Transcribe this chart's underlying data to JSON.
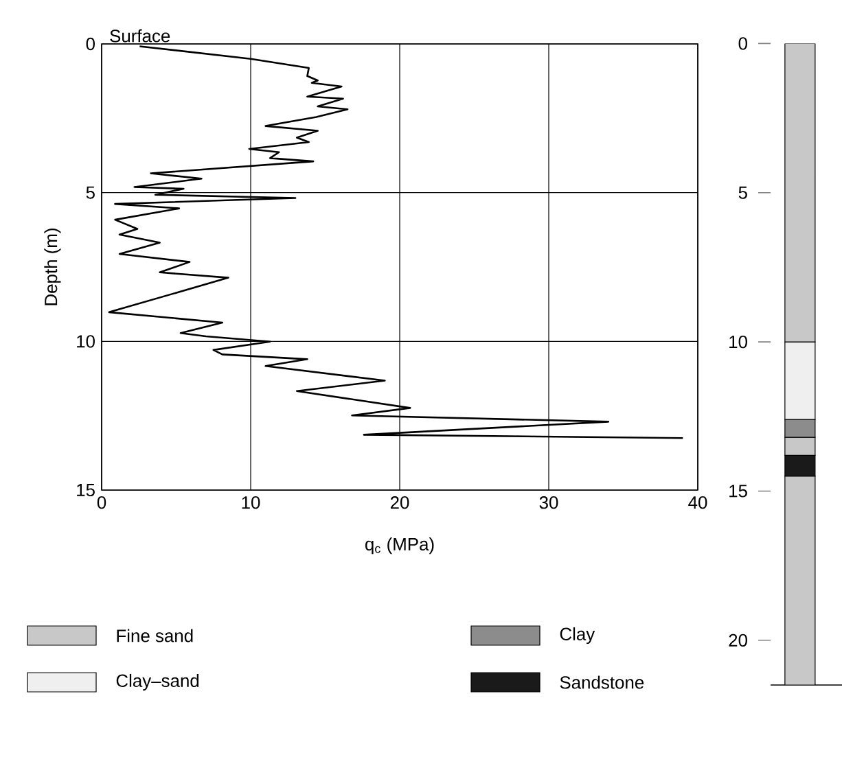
{
  "chart_data": [
    {
      "type": "line",
      "xlabel": "q$_{c}$ (MPa)",
      "ylabel": "Depth (m)",
      "annotations": [
        "Surface"
      ],
      "xlim": [
        0,
        40
      ],
      "ylim": [
        15,
        0
      ],
      "xticks": [
        0,
        10,
        20,
        30,
        40
      ],
      "yticks": [
        0,
        5,
        10,
        15
      ],
      "grid": true,
      "line_style": "solid",
      "series": [
        {
          "color": "#000000",
          "x": [
            2.55,
            10.0,
            13.9,
            13.8,
            14.5,
            14.1,
            16.1,
            13.8,
            16.2,
            14.5,
            16.5,
            14.4,
            11.0,
            14.5,
            13.1,
            13.9,
            9.9,
            11.9,
            11.3,
            14.2,
            3.3,
            6.7,
            2.2,
            5.5,
            3.6,
            13.0,
            0.9,
            5.2,
            0.9,
            2.4,
            1.2,
            3.9,
            1.2,
            5.9,
            3.9,
            8.5,
            0.5,
            8.1,
            5.3,
            7.0,
            11.3,
            7.5,
            8.1,
            13.8,
            11.0,
            19.0,
            13.1,
            20.7,
            16.8,
            34.0,
            17.6,
            39.0
          ],
          "values": [
            0.08,
            0.5,
            0.81,
            1.08,
            1.23,
            1.31,
            1.43,
            1.77,
            1.84,
            2.1,
            2.2,
            2.46,
            2.76,
            2.92,
            3.15,
            3.3,
            3.53,
            3.64,
            3.84,
            3.95,
            4.35,
            4.53,
            4.81,
            4.87,
            5.07,
            5.18,
            5.38,
            5.53,
            5.91,
            6.22,
            6.41,
            6.68,
            7.06,
            7.33,
            7.68,
            7.86,
            9.02,
            9.37,
            9.72,
            9.83,
            10.01,
            10.29,
            10.44,
            10.6,
            10.83,
            11.32,
            11.67,
            12.24,
            12.49,
            12.7,
            13.14,
            13.25
          ]
        }
      ]
    },
    {
      "type": "bar",
      "stacked": true,
      "categories": [
        null
      ],
      "ylim": [
        21.5,
        0
      ],
      "yticks": [
        0,
        5,
        10,
        15,
        20
      ],
      "tick_labels": "y",
      "legend": "bottom",
      "series": [
        {
          "name": "Fine sand",
          "color": "#c8c8c8",
          "values": [
            10.0
          ]
        },
        {
          "name": "Clay–sand",
          "color": "#efefef",
          "values": [
            2.6
          ]
        },
        {
          "name": "Clay",
          "color": "#8c8c8c",
          "values": [
            0.6
          ]
        },
        {
          "color": "#c8c8c8",
          "values": [
            0.6
          ]
        },
        {
          "name": "Sandstone",
          "color": "#1a1a1a",
          "values": [
            0.7
          ]
        },
        {
          "color": "#c8c8c8",
          "values": [
            7.0
          ]
        }
      ]
    }
  ]
}
